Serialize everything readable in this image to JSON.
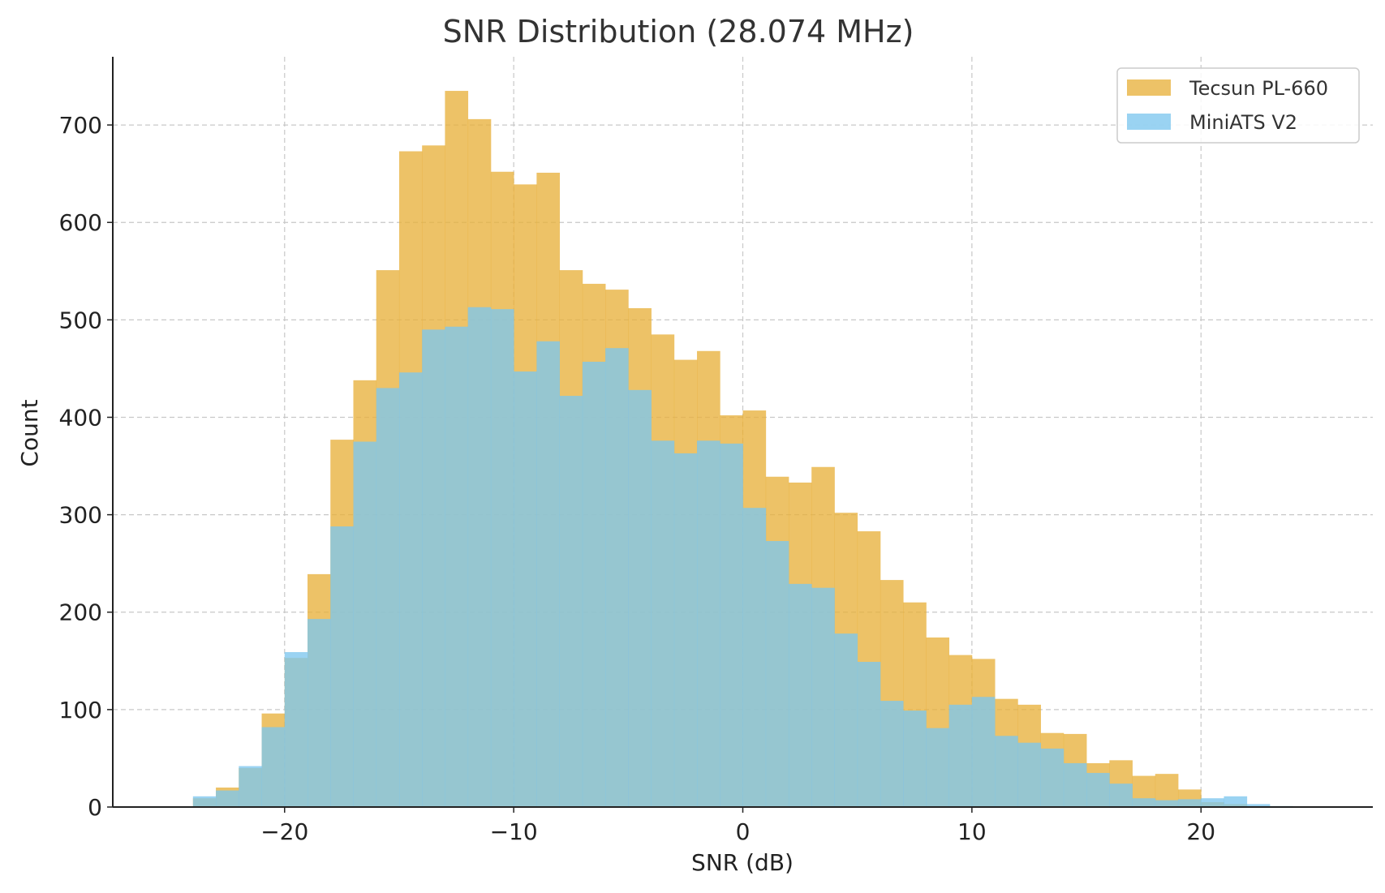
{
  "chart_data": {
    "type": "bar",
    "title": "SNR Distribution (28.074 MHz)",
    "xlabel": "SNR (dB)",
    "ylabel": "Count",
    "xlim": [
      -27.5,
      27.5
    ],
    "ylim": [
      0,
      770
    ],
    "xticks": [
      -20,
      -10,
      0,
      10,
      20
    ],
    "xtick_labels": [
      "−20",
      "−10",
      "0",
      "10",
      "20"
    ],
    "yticks": [
      0,
      100,
      200,
      300,
      400,
      500,
      600,
      700
    ],
    "ytick_labels": [
      "0",
      "100",
      "200",
      "300",
      "400",
      "500",
      "600",
      "700"
    ],
    "grid": true,
    "legend_position": "top-right",
    "bins": {
      "start": -24,
      "width": 1,
      "count": 48
    },
    "series": [
      {
        "name": "Tecsun PL-660",
        "color": "#e8b13c",
        "opacity": 0.78,
        "values": [
          9,
          20,
          40,
          96,
          153,
          239,
          377,
          438,
          551,
          673,
          679,
          735,
          706,
          652,
          639,
          651,
          551,
          537,
          531,
          512,
          485,
          459,
          468,
          402,
          407,
          339,
          333,
          349,
          302,
          283,
          233,
          210,
          174,
          156,
          152,
          111,
          105,
          76,
          75,
          45,
          48,
          32,
          34,
          18,
          5,
          3,
          1,
          0
        ]
      },
      {
        "name": "MiniATS V2",
        "color": "#7ec6ee",
        "opacity": 0.78,
        "values": [
          11,
          17,
          42,
          82,
          159,
          193,
          288,
          375,
          430,
          446,
          490,
          493,
          513,
          511,
          447,
          478,
          422,
          457,
          471,
          428,
          376,
          363,
          376,
          373,
          307,
          273,
          229,
          225,
          178,
          149,
          109,
          99,
          81,
          105,
          113,
          73,
          66,
          60,
          45,
          35,
          24,
          9,
          7,
          8,
          9,
          11,
          3,
          1
        ]
      }
    ]
  }
}
